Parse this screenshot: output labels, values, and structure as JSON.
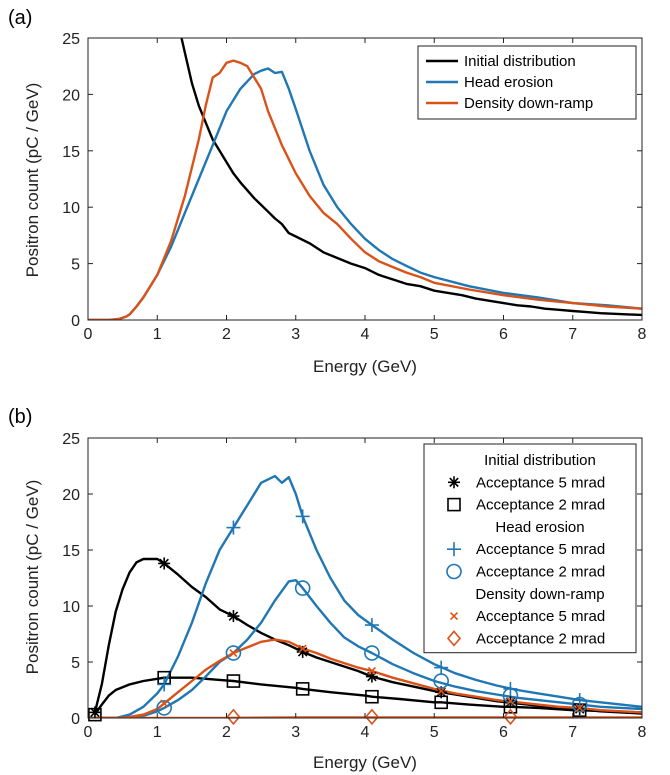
{
  "colors": {
    "black": "#000000",
    "blue": "#1f77b4",
    "orange": "#d95319",
    "axis": "#222222"
  },
  "chart_data": [
    {
      "type": "line",
      "panel_label": "(a)",
      "xlabel": "Energy (GeV)",
      "ylabel": "Positron count (pC / GeV)",
      "xlim": [
        0,
        8
      ],
      "ylim": [
        0,
        25
      ],
      "xticks": [
        "0",
        "1",
        "2",
        "3",
        "4",
        "5",
        "6",
        "7",
        "8"
      ],
      "yticks": [
        "0",
        "5",
        "10",
        "15",
        "20",
        "25"
      ],
      "legend_position": "top-right",
      "series": [
        {
          "name": "Initial distribution",
          "color": "#000000",
          "x": [
            1.35,
            1.5,
            1.6,
            1.7,
            1.8,
            1.9,
            2.0,
            2.1,
            2.2,
            2.3,
            2.4,
            2.5,
            2.6,
            2.7,
            2.8,
            2.9,
            3.0,
            3.2,
            3.4,
            3.6,
            3.8,
            4.0,
            4.2,
            4.4,
            4.6,
            4.8,
            5.0,
            5.2,
            5.4,
            5.6,
            5.8,
            6.0,
            6.2,
            6.4,
            6.6,
            6.8,
            7.0,
            7.2,
            7.4,
            7.6,
            7.8,
            8.0
          ],
          "y": [
            25,
            21,
            19,
            17.5,
            16,
            15,
            14,
            13,
            12.2,
            11.5,
            10.8,
            10.2,
            9.6,
            9.0,
            8.5,
            7.7,
            7.4,
            6.8,
            6.0,
            5.5,
            5.0,
            4.6,
            4.0,
            3.6,
            3.2,
            3.0,
            2.6,
            2.4,
            2.2,
            1.9,
            1.7,
            1.5,
            1.3,
            1.2,
            1.0,
            0.9,
            0.8,
            0.7,
            0.6,
            0.55,
            0.5,
            0.45
          ]
        },
        {
          "name": "Head erosion",
          "color": "#1f77b4",
          "x": [
            0,
            0.3,
            0.45,
            0.55,
            0.6,
            0.7,
            0.8,
            0.9,
            1.0,
            1.2,
            1.4,
            1.6,
            1.8,
            2.0,
            2.2,
            2.4,
            2.5,
            2.6,
            2.7,
            2.8,
            2.9,
            3.0,
            3.2,
            3.4,
            3.6,
            3.8,
            4.0,
            4.2,
            4.4,
            4.6,
            4.8,
            5.0,
            5.5,
            6.0,
            6.5,
            7.0,
            7.5,
            8.0
          ],
          "y": [
            0,
            0,
            0.1,
            0.3,
            0.5,
            1.2,
            2.0,
            3.0,
            4.0,
            6.5,
            9.5,
            12.5,
            15.5,
            18.5,
            20.5,
            21.8,
            22.1,
            22.3,
            21.9,
            22.0,
            20.5,
            18.7,
            15.0,
            12.0,
            10.0,
            8.5,
            7.2,
            6.2,
            5.4,
            4.8,
            4.2,
            3.8,
            3.0,
            2.4,
            2.0,
            1.5,
            1.3,
            1.0
          ]
        },
        {
          "name": "Density down-ramp",
          "color": "#d95319",
          "x": [
            0,
            0.3,
            0.45,
            0.55,
            0.6,
            0.7,
            0.8,
            0.9,
            1.0,
            1.2,
            1.4,
            1.6,
            1.7,
            1.8,
            1.9,
            2.0,
            2.1,
            2.2,
            2.3,
            2.4,
            2.5,
            2.6,
            2.8,
            3.0,
            3.2,
            3.4,
            3.6,
            3.8,
            4.0,
            4.2,
            4.4,
            4.6,
            4.8,
            5.0,
            5.5,
            6.0,
            6.5,
            7.0,
            7.5,
            8.0
          ],
          "y": [
            0,
            0,
            0.1,
            0.3,
            0.5,
            1.2,
            2.0,
            3.0,
            4.0,
            7.0,
            11.0,
            16.0,
            19.0,
            21.5,
            21.9,
            22.8,
            23.0,
            22.8,
            22.5,
            21.5,
            20.5,
            18.5,
            15.5,
            13.0,
            11.0,
            9.5,
            8.5,
            7.2,
            6.0,
            5.2,
            4.7,
            4.2,
            3.8,
            3.3,
            2.7,
            2.2,
            1.8,
            1.5,
            1.2,
            1.0
          ]
        }
      ]
    },
    {
      "type": "line",
      "panel_label": "(b)",
      "xlabel": "Energy (GeV)",
      "ylabel": "Positron count (pC / GeV)",
      "xlim": [
        0,
        8
      ],
      "ylim": [
        0,
        25
      ],
      "xticks": [
        "0",
        "1",
        "2",
        "3",
        "4",
        "5",
        "6",
        "7",
        "8"
      ],
      "yticks": [
        "0",
        "5",
        "10",
        "15",
        "20",
        "25"
      ],
      "legend_position": "top-right",
      "legend_groups": [
        {
          "title": "Initial distribution",
          "entries": [
            {
              "label": "Acceptance 5 mrad",
              "marker": "asterisk",
              "color": "#000000"
            },
            {
              "label": "Acceptance 2 mrad",
              "marker": "square",
              "color": "#000000"
            }
          ]
        },
        {
          "title": "Head erosion",
          "entries": [
            {
              "label": "Acceptance 5 mrad",
              "marker": "plus",
              "color": "#1f77b4"
            },
            {
              "label": "Acceptance 2 mrad",
              "marker": "circle",
              "color": "#1f77b4"
            }
          ]
        },
        {
          "title": "Density down-ramp",
          "entries": [
            {
              "label": "Acceptance 5 mrad",
              "marker": "cross",
              "color": "#d95319"
            },
            {
              "label": "Acceptance 2 mrad",
              "marker": "diamond",
              "color": "#d95319"
            }
          ]
        }
      ],
      "series": [
        {
          "group": "Initial distribution",
          "acceptance": "5 mrad",
          "color": "#000000",
          "marker": "asterisk",
          "x": [
            0.1,
            0.2,
            0.3,
            0.4,
            0.5,
            0.6,
            0.7,
            0.8,
            0.9,
            1.0,
            1.1,
            1.3,
            1.5,
            1.7,
            1.9,
            2.1,
            2.3,
            2.5,
            2.7,
            2.9,
            3.1,
            3.3,
            3.5,
            3.7,
            3.9,
            4.1,
            4.4,
            4.7,
            5.0,
            5.3,
            5.6,
            5.9,
            6.2,
            6.5,
            6.8,
            7.1,
            7.4,
            7.7,
            8.0
          ],
          "y": [
            0.5,
            3.0,
            6.5,
            9.5,
            11.5,
            13.0,
            13.9,
            14.2,
            14.2,
            14.2,
            13.8,
            12.8,
            11.7,
            10.8,
            9.7,
            9.1,
            8.3,
            7.6,
            7.0,
            6.5,
            5.9,
            5.4,
            5.0,
            4.6,
            4.2,
            3.7,
            3.2,
            2.8,
            2.4,
            2.1,
            1.8,
            1.5,
            1.3,
            1.1,
            0.9,
            0.8,
            0.6,
            0.5,
            0.4
          ],
          "marker_x": [
            0.1,
            1.1,
            2.1,
            3.1,
            4.1,
            5.1,
            6.1,
            7.1
          ],
          "marker_y": [
            0.5,
            13.8,
            9.1,
            5.9,
            3.7,
            2.3,
            1.4,
            0.8
          ]
        },
        {
          "group": "Initial distribution",
          "acceptance": "2 mrad",
          "color": "#000000",
          "marker": "square",
          "x": [
            0.1,
            0.2,
            0.3,
            0.4,
            0.6,
            0.8,
            1.0,
            1.1,
            1.3,
            1.5,
            1.7,
            1.9,
            2.1,
            2.5,
            3.0,
            3.1,
            3.5,
            4.0,
            4.1,
            4.5,
            5.0,
            5.1,
            5.5,
            6.0,
            6.1,
            6.5,
            7.0,
            7.1,
            7.5,
            8.0
          ],
          "y": [
            0.3,
            1.2,
            2.0,
            2.5,
            3.0,
            3.3,
            3.5,
            3.6,
            3.6,
            3.6,
            3.5,
            3.4,
            3.3,
            3.0,
            2.7,
            2.6,
            2.3,
            2.0,
            1.9,
            1.7,
            1.4,
            1.4,
            1.2,
            1.0,
            1.0,
            0.9,
            0.7,
            0.7,
            0.6,
            0.5
          ],
          "marker_x": [
            0.1,
            1.1,
            2.1,
            3.1,
            4.1,
            5.1,
            6.1,
            7.1
          ],
          "marker_y": [
            0.3,
            3.6,
            3.3,
            2.6,
            1.9,
            1.4,
            1.0,
            0.7
          ]
        },
        {
          "group": "Head erosion",
          "acceptance": "5 mrad",
          "color": "#1f77b4",
          "marker": "plus",
          "x": [
            0,
            0.4,
            0.6,
            0.8,
            1.0,
            1.1,
            1.3,
            1.5,
            1.7,
            1.9,
            2.1,
            2.3,
            2.5,
            2.7,
            2.8,
            2.9,
            3.0,
            3.1,
            3.3,
            3.5,
            3.7,
            3.9,
            4.1,
            4.4,
            4.7,
            5.0,
            5.3,
            5.6,
            5.9,
            6.2,
            6.5,
            6.8,
            7.1,
            7.4,
            7.7,
            8.0
          ],
          "y": [
            0,
            0,
            0.3,
            1.0,
            2.2,
            3.0,
            5.5,
            8.5,
            12.0,
            15.0,
            17.0,
            19.0,
            21.0,
            21.6,
            21.0,
            21.5,
            20.0,
            18.0,
            15.0,
            12.5,
            10.5,
            9.2,
            8.3,
            7.0,
            5.8,
            4.8,
            4.0,
            3.4,
            2.9,
            2.5,
            2.2,
            1.9,
            1.6,
            1.4,
            1.2,
            1.0
          ],
          "marker_x": [
            1.1,
            2.1,
            3.1,
            4.1,
            5.1,
            6.1,
            7.1
          ],
          "marker_y": [
            3.0,
            17.0,
            18.0,
            8.3,
            4.5,
            2.6,
            1.6
          ]
        },
        {
          "group": "Head erosion",
          "acceptance": "2 mrad",
          "color": "#1f77b4",
          "marker": "circle",
          "x": [
            0,
            0.5,
            0.8,
            1.0,
            1.1,
            1.3,
            1.5,
            1.7,
            1.9,
            2.1,
            2.3,
            2.5,
            2.7,
            2.9,
            3.0,
            3.1,
            3.3,
            3.5,
            3.7,
            3.9,
            4.1,
            4.4,
            4.7,
            5.0,
            5.3,
            5.6,
            5.9,
            6.2,
            6.5,
            6.8,
            7.1,
            7.4,
            7.7,
            8.0
          ],
          "y": [
            0,
            0,
            0.2,
            0.6,
            0.9,
            1.6,
            2.5,
            3.7,
            5.0,
            5.8,
            7.0,
            8.5,
            10.5,
            12.2,
            12.3,
            11.6,
            10.0,
            8.5,
            7.2,
            6.4,
            5.8,
            4.8,
            4.0,
            3.3,
            2.8,
            2.4,
            2.1,
            1.8,
            1.6,
            1.4,
            1.2,
            1.0,
            0.9,
            0.8
          ],
          "marker_x": [
            1.1,
            2.1,
            3.1,
            4.1,
            5.1,
            6.1,
            7.1
          ],
          "marker_y": [
            0.9,
            5.8,
            11.6,
            5.8,
            3.3,
            2.0,
            1.2
          ]
        },
        {
          "group": "Density down-ramp",
          "acceptance": "5 mrad",
          "color": "#d95319",
          "marker": "cross",
          "x": [
            0,
            0.5,
            0.8,
            1.0,
            1.1,
            1.3,
            1.5,
            1.7,
            1.9,
            2.1,
            2.3,
            2.5,
            2.7,
            2.9,
            3.1,
            3.3,
            3.5,
            3.7,
            3.9,
            4.1,
            4.4,
            4.7,
            5.0,
            5.3,
            5.6,
            5.9,
            6.2,
            6.5,
            6.8,
            7.1,
            7.4,
            7.7,
            8.0
          ],
          "y": [
            0,
            0,
            0.3,
            0.8,
            1.3,
            2.3,
            3.3,
            4.3,
            5.1,
            5.8,
            6.3,
            6.8,
            7.0,
            6.8,
            6.2,
            5.8,
            5.3,
            4.9,
            4.5,
            4.2,
            3.6,
            3.1,
            2.6,
            2.2,
            1.9,
            1.6,
            1.4,
            1.2,
            1.0,
            0.9,
            0.7,
            0.6,
            0.5
          ],
          "marker_x": [
            1.1,
            2.1,
            3.1,
            4.1,
            5.1,
            6.1,
            7.1
          ],
          "marker_y": [
            1.3,
            5.8,
            6.2,
            4.2,
            2.4,
            1.5,
            0.9
          ]
        },
        {
          "group": "Density down-ramp",
          "acceptance": "2 mrad",
          "color": "#d95319",
          "marker": "diamond",
          "x": [
            0,
            1.0,
            2.0,
            3.0,
            4.0,
            5.0,
            6.0,
            7.0,
            8.0
          ],
          "y": [
            0,
            0,
            0,
            0.05,
            0.05,
            0.05,
            0.05,
            0.05,
            0.05
          ],
          "marker_x": [
            2.1,
            4.1,
            6.1
          ],
          "marker_y": [
            0.1,
            0.1,
            0.1
          ]
        }
      ]
    }
  ]
}
